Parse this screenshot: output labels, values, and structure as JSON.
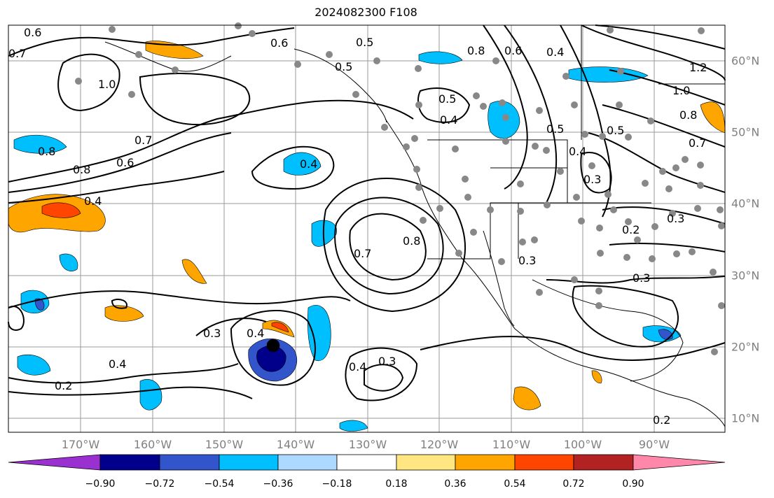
{
  "title": "2024082300 F108",
  "longitude_labels": [
    "170°W",
    "160°W",
    "150°W",
    "140°W",
    "130°W",
    "120°W",
    "110°W",
    "100°W",
    "90°W"
  ],
  "latitude_labels": [
    "60°N",
    "50°N",
    "40°N",
    "30°N",
    "20°N",
    "10°N"
  ],
  "colorbar": {
    "ticks": [
      "−0.90",
      "−0.72",
      "−0.54",
      "−0.36",
      "−0.18",
      "0.18",
      "0.36",
      "0.54",
      "0.72",
      "0.90"
    ],
    "colors": [
      "#9b30d0",
      "#00008b",
      "#3355cc",
      "#00bfff",
      "#add8ff",
      "#ffffff",
      "#ffe680",
      "#ffa500",
      "#ff4500",
      "#b22222",
      "#ff88aa"
    ]
  },
  "contour_labels": [
    {
      "text": "0.6"
    },
    {
      "text": "0.7"
    },
    {
      "text": "1.0"
    },
    {
      "text": "0.8"
    },
    {
      "text": "0.8"
    },
    {
      "text": "0.7"
    },
    {
      "text": "0.6"
    },
    {
      "text": "0.4"
    },
    {
      "text": "0.6"
    },
    {
      "text": "0.5"
    },
    {
      "text": "0.5"
    },
    {
      "text": "0.5"
    },
    {
      "text": "0.4"
    },
    {
      "text": "0.8"
    },
    {
      "text": "0.6"
    },
    {
      "text": "0.4"
    },
    {
      "text": "1.2"
    },
    {
      "text": "1.0"
    },
    {
      "text": "0.8"
    },
    {
      "text": "0.7"
    },
    {
      "text": "0.5"
    },
    {
      "text": "0.5"
    },
    {
      "text": "0.4"
    },
    {
      "text": "0.3"
    },
    {
      "text": "0.2"
    },
    {
      "text": "0.3"
    },
    {
      "text": "0.3"
    },
    {
      "text": "0.3"
    },
    {
      "text": "0.3"
    },
    {
      "text": "0.4"
    },
    {
      "text": "0.4"
    },
    {
      "text": "0.3"
    },
    {
      "text": "0.4"
    },
    {
      "text": "0.2"
    },
    {
      "text": "0.2"
    },
    {
      "text": "0.7"
    },
    {
      "text": "0.8"
    },
    {
      "text": "0.4"
    }
  ]
}
